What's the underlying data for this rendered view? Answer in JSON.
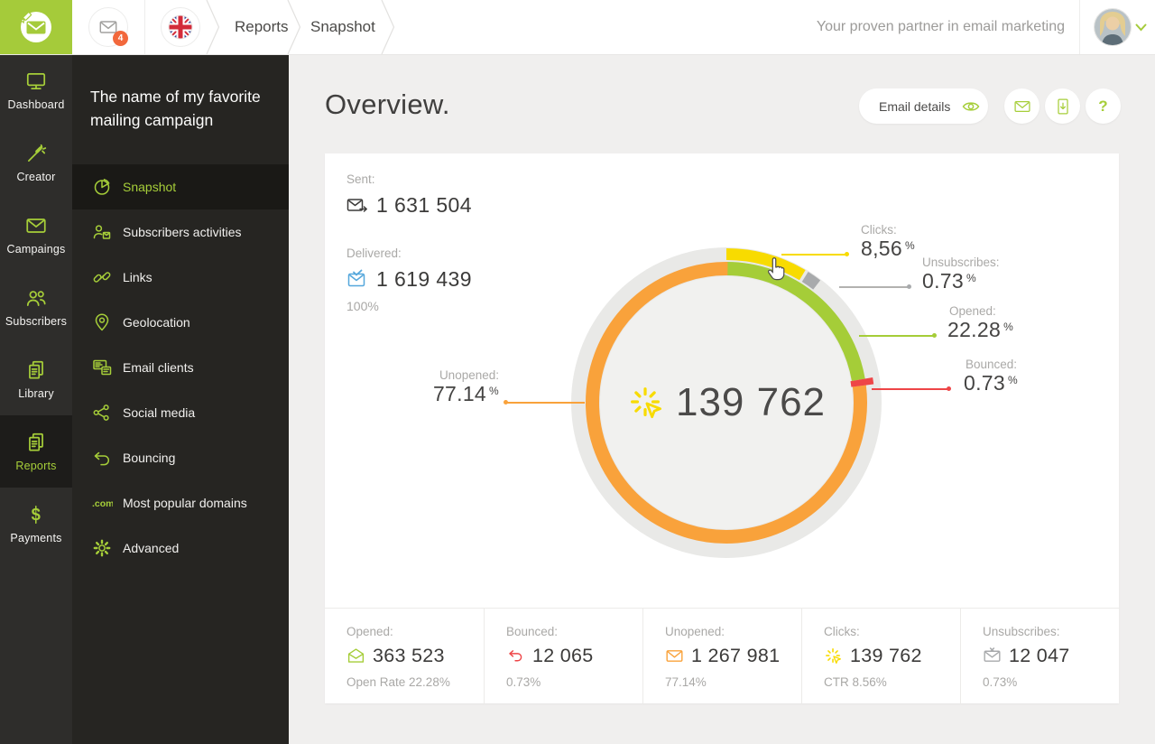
{
  "topbar": {
    "notifications_count": "4",
    "breadcrumb": [
      "Reports",
      "Snapshot"
    ],
    "tagline": "Your proven partner in email marketing"
  },
  "sidebar": {
    "items": [
      {
        "label": "Dashboard",
        "active": false
      },
      {
        "label": "Creator",
        "active": false
      },
      {
        "label": "Campaings",
        "active": false
      },
      {
        "label": "Subscribers",
        "active": false
      },
      {
        "label": "Library",
        "active": false
      },
      {
        "label": "Reports",
        "active": true
      },
      {
        "label": "Payments",
        "active": false
      }
    ]
  },
  "campaign_menu": {
    "title": "The name of my favorite mailing campaign",
    "items": [
      {
        "label": "Snapshot",
        "active": true
      },
      {
        "label": "Subscribers activities",
        "active": false
      },
      {
        "label": "Links",
        "active": false
      },
      {
        "label": "Geolocation",
        "active": false
      },
      {
        "label": "Email clients",
        "active": false
      },
      {
        "label": "Social media",
        "active": false
      },
      {
        "label": "Bouncing",
        "active": false
      },
      {
        "label": "Most popular domains",
        "active": false
      },
      {
        "label": "Advanced",
        "active": false
      }
    ]
  },
  "icons": {
    "payments_glyph": "$",
    "domains_glyph": ".com"
  },
  "main": {
    "heading": "Overview.",
    "buttons": {
      "email_details": "Email details",
      "help": "?"
    },
    "summary": {
      "sent_label": "Sent:",
      "sent_value": "1 631 504",
      "delivered_label": "Delivered:",
      "delivered_value": "1 619 439",
      "delivered_rate": "100%"
    }
  },
  "chart_data": {
    "type": "donut",
    "center": {
      "value": "139 762"
    },
    "segments": [
      {
        "label": "Opened",
        "value_pct": 22.28,
        "color": "#a5cd38",
        "band": "inner"
      },
      {
        "label": "Bounced",
        "value_pct": 0.73,
        "color": "#ee4547",
        "band": "inner",
        "emphasis": true
      },
      {
        "label": "Unopened",
        "value_pct": 77.14,
        "color": "#f9a23b",
        "band": "inner"
      },
      {
        "label": "Clicks",
        "value_pct": 8.56,
        "color": "#f8db00",
        "band": "outer"
      },
      {
        "label": "Unsubscribes",
        "value_pct": 0.73,
        "color": "#a8aaac",
        "band": "outer"
      }
    ],
    "callouts": {
      "clicks": {
        "label": "Clicks:",
        "value": "8,56",
        "unit": "%"
      },
      "unsubscribes": {
        "label": "Unsubscribes:",
        "value": "0.73",
        "unit": "%"
      },
      "opened": {
        "label": "Opened:",
        "value": "22.28",
        "unit": "%"
      },
      "bounced": {
        "label": "Bounced:",
        "value": "0.73",
        "unit": "%"
      },
      "unopened": {
        "label": "Unopened:",
        "value": "77.14",
        "unit": "%"
      }
    }
  },
  "footer_stats": [
    {
      "label": "Opened:",
      "value": "363 523",
      "sub": "Open Rate 22.28%"
    },
    {
      "label": "Bounced:",
      "value": "12 065",
      "sub": "0.73%"
    },
    {
      "label": "Unopened:",
      "value": "1 267 981",
      "sub": "77.14%"
    },
    {
      "label": "Clicks:",
      "value": "139 762",
      "sub": "CTR 8.56%"
    },
    {
      "label": "Unsubscribes:",
      "value": "12 047",
      "sub": "0.73%"
    }
  ]
}
